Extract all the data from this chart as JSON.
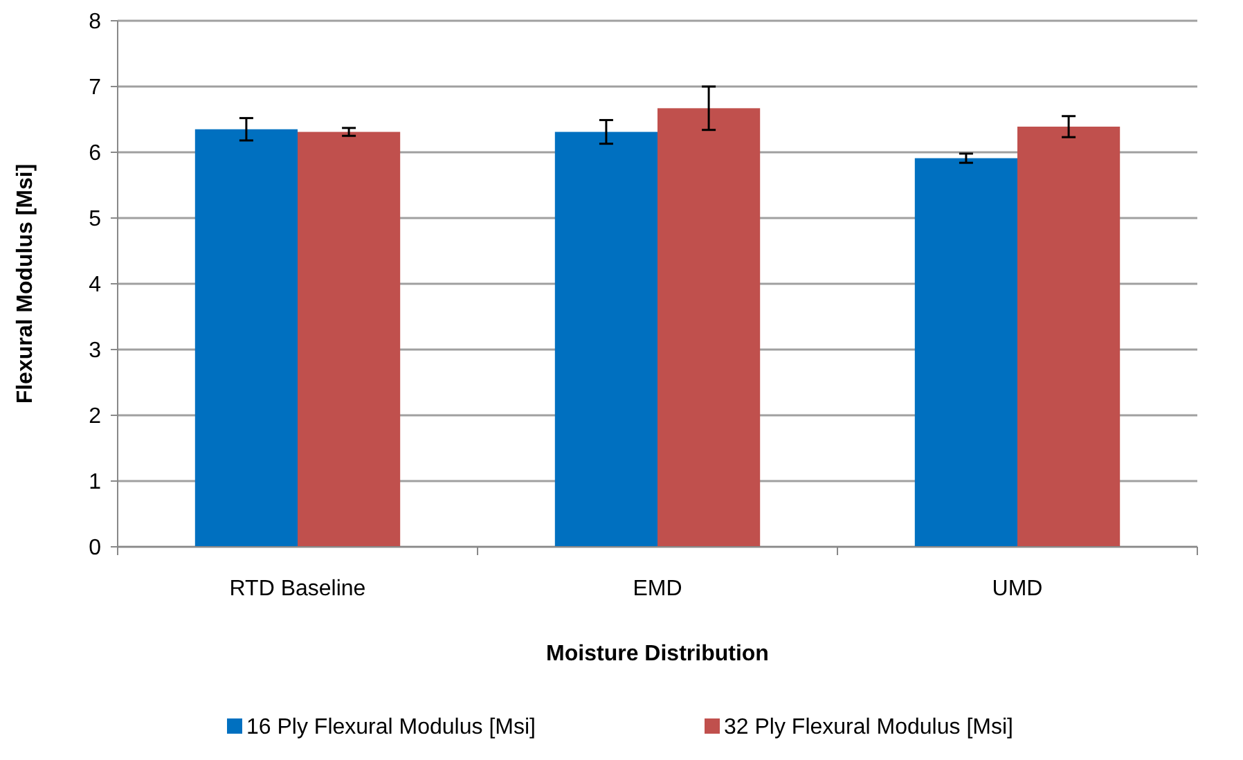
{
  "chart_data": {
    "type": "bar",
    "xlabel": "Moisture Distribution",
    "ylabel": "Flexural Modulus [Msi]",
    "categories": [
      "RTD Baseline",
      "EMD",
      "UMD"
    ],
    "series": [
      {
        "name": "16 Ply Flexural Modulus [Msi]",
        "color": "#0070c0",
        "values": [
          6.35,
          6.31,
          5.91
        ],
        "errors": [
          0.17,
          0.18,
          0.07
        ]
      },
      {
        "name": "32 Ply Flexural Modulus [Msi]",
        "color": "#c0504d",
        "values": [
          6.31,
          6.67,
          6.39
        ],
        "errors": [
          0.06,
          0.33,
          0.16
        ]
      }
    ],
    "ylim": [
      0,
      8
    ],
    "yticks": [
      0,
      1,
      2,
      3,
      4,
      5,
      6,
      7,
      8
    ],
    "grid": "y",
    "legend": "bottom"
  }
}
